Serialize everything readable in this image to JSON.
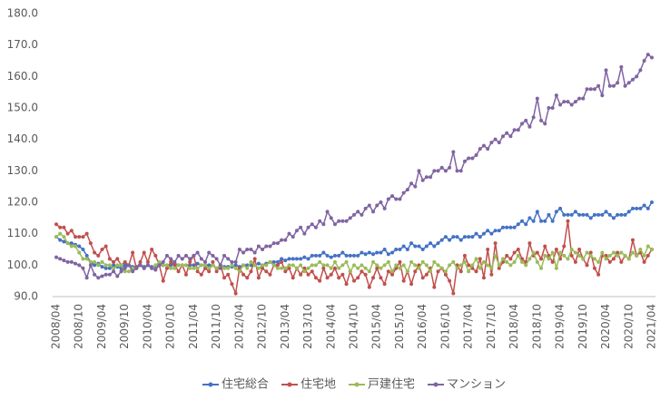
{
  "chart_data": {
    "type": "line",
    "categories": [
      "2008/04",
      null,
      null,
      null,
      null,
      null,
      "2008/10",
      null,
      null,
      null,
      null,
      null,
      "2009/04",
      null,
      null,
      null,
      null,
      null,
      "2009/10",
      null,
      null,
      null,
      null,
      null,
      "2010/04",
      null,
      null,
      null,
      null,
      null,
      "2010/10",
      null,
      null,
      null,
      null,
      null,
      "2011/04",
      null,
      null,
      null,
      null,
      null,
      "2011/10",
      null,
      null,
      null,
      null,
      null,
      "2012/04",
      null,
      null,
      null,
      null,
      null,
      "2012/10",
      null,
      null,
      null,
      null,
      null,
      "2013/04",
      null,
      null,
      null,
      null,
      null,
      "2013/10",
      null,
      null,
      null,
      null,
      null,
      "2014/04",
      null,
      null,
      null,
      null,
      null,
      "2014/10",
      null,
      null,
      null,
      null,
      null,
      "2015/04",
      null,
      null,
      null,
      null,
      null,
      "2015/10",
      null,
      null,
      null,
      null,
      null,
      "2016/04",
      null,
      null,
      null,
      null,
      null,
      "2016/10",
      null,
      null,
      null,
      null,
      null,
      "2017/04",
      null,
      null,
      null,
      null,
      null,
      "2017/10",
      null,
      null,
      null,
      null,
      null,
      "2018/04",
      null,
      null,
      null,
      null,
      null,
      "2018/10",
      null,
      null,
      null,
      null,
      null,
      "2019/04",
      null,
      null,
      null,
      null,
      null,
      "2019/10",
      null,
      null,
      null,
      null,
      null,
      "2020/04",
      null,
      null,
      null,
      null,
      null,
      "2020/10",
      null,
      null,
      null,
      null,
      null,
      "2021/04"
    ],
    "series": [
      {
        "name": "住宅総合",
        "color": "#4472c4",
        "values": [
          109,
          108,
          107.5,
          107,
          107,
          106.5,
          106,
          105,
          103,
          101,
          100,
          100.5,
          99.5,
          99,
          99,
          100,
          99.5,
          99,
          100,
          100,
          99.5,
          99.5,
          100,
          99.5,
          100,
          99.5,
          99.5,
          100,
          100,
          100,
          100,
          100.5,
          100,
          100,
          100,
          100,
          100,
          100.5,
          100,
          100,
          100,
          100,
          99,
          99,
          99.5,
          99.5,
          99.5,
          100,
          99.5,
          100,
          100,
          100,
          100,
          100.5,
          100,
          100.5,
          101,
          101,
          101,
          102,
          101.5,
          102,
          102,
          102,
          102,
          102.5,
          102,
          103,
          103,
          103,
          104,
          103,
          102.5,
          103,
          103,
          104,
          103,
          103,
          103,
          103,
          104,
          103.5,
          104,
          103.5,
          104,
          104,
          105,
          103.5,
          104,
          105,
          105,
          106,
          105,
          107,
          106,
          106,
          105,
          106,
          107,
          106,
          107,
          108,
          109,
          108,
          109,
          109,
          108,
          109,
          109,
          109,
          110,
          109,
          110,
          111,
          110,
          111,
          111,
          112,
          112,
          112,
          112,
          113,
          114,
          113,
          115,
          114,
          117,
          114,
          114,
          116,
          114,
          117,
          118,
          116,
          116,
          116,
          117,
          116,
          116,
          116,
          115,
          116,
          116,
          116,
          117,
          116,
          115,
          116,
          116,
          116,
          117,
          118,
          118,
          118,
          119,
          118,
          120
        ]
      },
      {
        "name": "住宅地",
        "color": "#c0504d",
        "values": [
          113,
          112,
          112,
          110,
          111,
          109,
          109,
          109,
          110,
          107,
          104,
          103,
          105,
          106,
          102,
          101,
          102,
          100,
          101,
          100,
          104,
          99,
          101,
          104,
          101,
          105,
          103,
          100,
          95,
          99,
          101,
          100,
          98,
          100,
          97,
          101,
          103,
          98,
          97,
          99,
          98,
          101,
          98,
          100,
          96,
          97,
          94,
          91,
          99,
          97,
          96,
          98,
          102,
          96,
          99,
          98,
          97,
          100,
          100,
          101,
          98,
          99,
          96,
          99,
          97,
          99,
          97,
          98,
          96,
          95,
          99,
          96,
          97,
          99,
          96,
          97,
          94,
          98,
          95,
          96,
          98,
          97,
          93,
          96,
          99,
          96,
          94,
          98,
          97,
          99,
          101,
          95,
          98,
          94,
          98,
          100,
          96,
          97,
          99,
          93,
          98,
          99,
          97,
          95,
          91,
          100,
          98,
          103,
          100,
          99,
          98,
          102,
          96,
          105,
          97,
          107,
          99,
          101,
          103,
          102,
          104,
          105,
          102,
          101,
          107,
          103,
          104,
          102,
          106,
          103,
          101,
          105,
          102,
          106,
          114,
          103,
          101,
          105,
          102,
          100,
          104,
          99,
          97,
          103,
          103,
          101,
          102,
          104,
          101,
          103,
          102,
          108,
          103,
          104,
          101,
          103,
          105
        ]
      },
      {
        "name": "戸建住宅",
        "color": "#9bbb59",
        "values": [
          109,
          110,
          109,
          107,
          106,
          106,
          104,
          102,
          102,
          101,
          101,
          100,
          101,
          100,
          100,
          99,
          100,
          100,
          98,
          98,
          99,
          99,
          100,
          99,
          100,
          99,
          100,
          101,
          100,
          100,
          99,
          99,
          100,
          100,
          100,
          99,
          99,
          99,
          100,
          100,
          99,
          100,
          99,
          100,
          99,
          99,
          100,
          99,
          98,
          100,
          99,
          101,
          100,
          99,
          100,
          100,
          101,
          100,
          99,
          99,
          99,
          100,
          100,
          99,
          100,
          98,
          99,
          100,
          100,
          101,
          100,
          100,
          99,
          101,
          99,
          100,
          101,
          98,
          100,
          99,
          100,
          99,
          98,
          101,
          100,
          99,
          100,
          101,
          98,
          100,
          99,
          100,
          98,
          101,
          100,
          99,
          101,
          100,
          98,
          101,
          100,
          99,
          98,
          100,
          101,
          99,
          100,
          101,
          98,
          100,
          102,
          99,
          101,
          100,
          99,
          103,
          100,
          102,
          101,
          100,
          101,
          103,
          101,
          100,
          102,
          104,
          101,
          99,
          103,
          102,
          104,
          99,
          104,
          103,
          102,
          105,
          104,
          103,
          102,
          104,
          103,
          102,
          101,
          104,
          102,
          103,
          104,
          103,
          104,
          103,
          102,
          104,
          103,
          105,
          103,
          106,
          105
        ]
      },
      {
        "name": "マンション",
        "color": "#8064a2",
        "values": [
          102.5,
          102,
          101.5,
          101,
          101,
          100.5,
          100,
          99,
          96,
          100,
          97,
          96,
          96.5,
          97,
          97,
          98,
          96.5,
          98,
          99,
          100,
          98,
          99,
          100,
          99,
          100,
          99,
          98.5,
          100,
          101,
          103,
          102,
          101,
          103,
          102,
          103,
          102,
          103,
          104,
          102,
          101,
          104,
          103,
          102,
          100,
          103,
          102,
          101,
          101,
          105,
          104,
          105,
          105,
          104,
          106,
          105,
          106,
          106,
          107,
          107,
          108,
          108,
          110,
          109,
          111,
          112,
          110,
          112,
          113,
          112,
          114,
          113,
          117,
          115,
          113,
          114,
          114,
          114,
          115,
          116,
          117,
          116,
          118,
          119,
          117,
          119,
          120,
          118,
          121,
          122,
          121,
          121,
          123,
          124,
          126,
          125,
          130,
          127,
          128,
          128,
          130,
          130,
          131,
          130,
          131,
          136,
          130,
          130,
          133,
          134,
          134,
          135,
          137,
          138,
          137,
          139,
          140,
          139,
          141,
          142,
          141,
          143,
          143,
          145,
          146,
          144,
          147,
          153,
          146,
          145,
          150,
          150,
          154,
          151,
          152,
          152,
          151,
          152,
          153,
          153,
          156,
          156,
          156,
          157,
          154,
          162,
          157,
          157,
          158,
          163,
          157,
          158,
          159,
          160,
          162,
          165,
          167,
          166
        ]
      }
    ],
    "ylim": [
      90,
      180
    ],
    "yticks": [
      {
        "value": 90,
        "label": "90.0"
      },
      {
        "value": 100,
        "label": "100.0"
      },
      {
        "value": 110,
        "label": "110.0"
      },
      {
        "value": 120,
        "label": "120.0"
      },
      {
        "value": 130,
        "label": "130.0"
      },
      {
        "value": 140,
        "label": "140.0"
      },
      {
        "value": 150,
        "label": "150.0"
      },
      {
        "value": 160,
        "label": "160.0"
      },
      {
        "value": 170,
        "label": "170.0"
      },
      {
        "value": 180,
        "label": "180.0"
      }
    ],
    "grid": false,
    "legend": "bottom"
  }
}
